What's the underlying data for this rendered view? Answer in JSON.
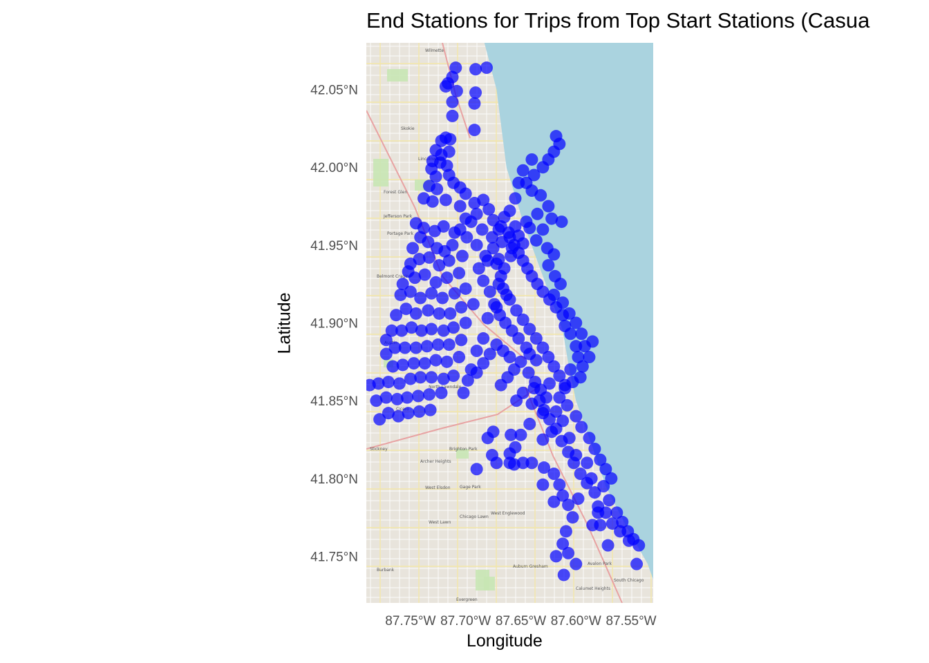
{
  "chart_data": {
    "type": "scatter",
    "title": "End Stations for Trips from Top Start Stations (Casua",
    "xlabel": "Longitude",
    "ylabel": "Latitude",
    "xlim": [
      -87.79,
      -87.53
    ],
    "ylim": [
      41.72,
      42.08
    ],
    "x_ticks": [
      {
        "value": -87.75,
        "label": "87.75°W"
      },
      {
        "value": -87.7,
        "label": "87.70°W"
      },
      {
        "value": -87.65,
        "label": "87.65°W"
      },
      {
        "value": -87.6,
        "label": "87.60°W"
      },
      {
        "value": -87.55,
        "label": "87.55°W"
      }
    ],
    "y_ticks": [
      {
        "value": 42.05,
        "label": "42.05°N"
      },
      {
        "value": 42.0,
        "label": "42.00°N"
      },
      {
        "value": 41.95,
        "label": "41.95°N"
      },
      {
        "value": 41.9,
        "label": "41.90°N"
      },
      {
        "value": 41.85,
        "label": "41.85°N"
      },
      {
        "value": 41.8,
        "label": "41.80°N"
      },
      {
        "value": 41.75,
        "label": "41.75°N"
      }
    ],
    "grid": false,
    "point_color": "#0000ff",
    "point_alpha": 0.7,
    "basemap": {
      "land": "#e8e4dc",
      "water": "#aad3df",
      "park": "#c8e6b4"
    },
    "map_labels": [
      "Wilmette",
      "Skokie",
      "Lincolnwood",
      "Jefferson Park",
      "Portage Park",
      "Belmont Cragin",
      "Austin",
      "Cicero",
      "North Lawndale",
      "Stickney",
      "Archer Heights",
      "Brighton Park",
      "Gage Park",
      "Chicago Lawn",
      "West Englewood",
      "Auburn Gresham",
      "Burbank",
      "Evergreen",
      "South Chicago",
      "Calumet Heights",
      "Avalon Park",
      "Forest Glen",
      "West Elsdon",
      "West Lawn"
    ],
    "points": [
      [
        -87.681,
        42.064
      ],
      [
        -87.691,
        42.063
      ],
      [
        -87.709,
        42.064
      ],
      [
        -87.712,
        42.058
      ],
      [
        -87.716,
        42.054
      ],
      [
        -87.708,
        42.049
      ],
      [
        -87.718,
        42.052
      ],
      [
        -87.691,
        42.048
      ],
      [
        -87.692,
        42.041
      ],
      [
        -87.712,
        42.042
      ],
      [
        -87.712,
        42.033
      ],
      [
        -87.692,
        42.024
      ],
      [
        -87.714,
        42.018
      ],
      [
        -87.718,
        42.019
      ],
      [
        -87.722,
        42.017
      ],
      [
        -87.715,
        42.01
      ],
      [
        -87.722,
        42.008
      ],
      [
        -87.727,
        42.011
      ],
      [
        -87.717,
        42.001
      ],
      [
        -87.723,
        42.003
      ],
      [
        -87.73,
        42.004
      ],
      [
        -87.715,
        41.995
      ],
      [
        -87.727,
        41.994
      ],
      [
        -87.731,
        41.999
      ],
      [
        -87.711,
        41.99
      ],
      [
        -87.705,
        41.987
      ],
      [
        -87.726,
        41.986
      ],
      [
        -87.733,
        41.988
      ],
      [
        -87.7,
        41.983
      ],
      [
        -87.718,
        41.979
      ],
      [
        -87.73,
        41.978
      ],
      [
        -87.738,
        41.98
      ],
      [
        -87.705,
        41.975
      ],
      [
        -87.692,
        41.977
      ],
      [
        -87.684,
        41.979
      ],
      [
        -87.679,
        41.973
      ],
      [
        -87.69,
        41.97
      ],
      [
        -87.695,
        41.965
      ],
      [
        -87.675,
        41.966
      ],
      [
        -87.668,
        41.962
      ],
      [
        -87.661,
        41.958
      ],
      [
        -87.652,
        41.956
      ],
      [
        -87.642,
        41.961
      ],
      [
        -87.636,
        41.953
      ],
      [
        -87.648,
        41.951
      ],
      [
        -87.658,
        41.948
      ],
      [
        -87.667,
        41.952
      ],
      [
        -87.659,
        41.943
      ],
      [
        -87.67,
        41.941
      ],
      [
        -87.682,
        41.943
      ],
      [
        -87.69,
        41.95
      ],
      [
        -87.699,
        41.955
      ],
      [
        -87.71,
        41.958
      ],
      [
        -87.72,
        41.962
      ],
      [
        -87.728,
        41.959
      ],
      [
        -87.738,
        41.961
      ],
      [
        -87.745,
        41.964
      ],
      [
        -87.712,
        41.95
      ],
      [
        -87.719,
        41.946
      ],
      [
        -87.726,
        41.948
      ],
      [
        -87.734,
        41.952
      ],
      [
        -87.741,
        41.955
      ],
      [
        -87.748,
        41.948
      ],
      [
        -87.703,
        41.943
      ],
      [
        -87.715,
        41.94
      ],
      [
        -87.724,
        41.937
      ],
      [
        -87.733,
        41.942
      ],
      [
        -87.742,
        41.941
      ],
      [
        -87.75,
        41.938
      ],
      [
        -87.706,
        41.932
      ],
      [
        -87.717,
        41.929
      ],
      [
        -87.727,
        41.926
      ],
      [
        -87.737,
        41.931
      ],
      [
        -87.746,
        41.929
      ],
      [
        -87.752,
        41.933
      ],
      [
        -87.757,
        41.925
      ],
      [
        -87.7,
        41.922
      ],
      [
        -87.71,
        41.919
      ],
      [
        -87.721,
        41.916
      ],
      [
        -87.731,
        41.919
      ],
      [
        -87.741,
        41.916
      ],
      [
        -87.75,
        41.92
      ],
      [
        -87.759,
        41.918
      ],
      [
        -87.693,
        41.912
      ],
      [
        -87.704,
        41.91
      ],
      [
        -87.714,
        41.906
      ],
      [
        -87.724,
        41.906
      ],
      [
        -87.734,
        41.908
      ],
      [
        -87.745,
        41.906
      ],
      [
        -87.754,
        41.909
      ],
      [
        -87.763,
        41.905
      ],
      [
        -87.7,
        41.9
      ],
      [
        -87.711,
        41.897
      ],
      [
        -87.72,
        41.895
      ],
      [
        -87.731,
        41.896
      ],
      [
        -87.74,
        41.895
      ],
      [
        -87.749,
        41.897
      ],
      [
        -87.758,
        41.895
      ],
      [
        -87.767,
        41.895
      ],
      [
        -87.772,
        41.889
      ],
      [
        -87.704,
        41.889
      ],
      [
        -87.715,
        41.886
      ],
      [
        -87.725,
        41.886
      ],
      [
        -87.735,
        41.885
      ],
      [
        -87.745,
        41.884
      ],
      [
        -87.755,
        41.884
      ],
      [
        -87.764,
        41.884
      ],
      [
        -87.772,
        41.88
      ],
      [
        -87.706,
        41.878
      ],
      [
        -87.717,
        41.875
      ],
      [
        -87.727,
        41.876
      ],
      [
        -87.737,
        41.874
      ],
      [
        -87.747,
        41.874
      ],
      [
        -87.757,
        41.873
      ],
      [
        -87.766,
        41.872
      ],
      [
        -87.711,
        41.866
      ],
      [
        -87.72,
        41.864
      ],
      [
        -87.731,
        41.865
      ],
      [
        -87.741,
        41.865
      ],
      [
        -87.75,
        41.864
      ],
      [
        -87.76,
        41.861
      ],
      [
        -87.77,
        41.862
      ],
      [
        -87.779,
        41.861
      ],
      [
        -87.787,
        41.86
      ],
      [
        -87.722,
        41.855
      ],
      [
        -87.733,
        41.854
      ],
      [
        -87.743,
        41.853
      ],
      [
        -87.753,
        41.852
      ],
      [
        -87.762,
        41.851
      ],
      [
        -87.772,
        41.852
      ],
      [
        -87.781,
        41.85
      ],
      [
        -87.732,
        41.844
      ],
      [
        -87.742,
        41.843
      ],
      [
        -87.752,
        41.842
      ],
      [
        -87.761,
        41.84
      ],
      [
        -87.77,
        41.842
      ],
      [
        -87.778,
        41.838
      ],
      [
        -87.7,
        41.967
      ],
      [
        -87.705,
        41.96
      ],
      [
        -87.685,
        41.96
      ],
      [
        -87.676,
        41.955
      ],
      [
        -87.665,
        41.935
      ],
      [
        -87.67,
        41.925
      ],
      [
        -87.663,
        41.918
      ],
      [
        -87.672,
        41.91
      ],
      [
        -87.68,
        41.903
      ],
      [
        -87.684,
        41.89
      ],
      [
        -87.69,
        41.882
      ],
      [
        -87.695,
        41.87
      ],
      [
        -87.698,
        41.863
      ],
      [
        -87.702,
        41.855
      ],
      [
        -87.622,
        41.967
      ],
      [
        -87.613,
        41.965
      ],
      [
        -87.63,
        41.96
      ],
      [
        -87.626,
        41.948
      ],
      [
        -87.62,
        41.944
      ],
      [
        -87.625,
        41.937
      ],
      [
        -87.619,
        41.93
      ],
      [
        -87.614,
        41.925
      ],
      [
        -87.62,
        41.918
      ],
      [
        -87.612,
        41.913
      ],
      [
        -87.606,
        41.906
      ],
      [
        -87.6,
        41.9
      ],
      [
        -87.595,
        41.893
      ],
      [
        -87.592,
        41.885
      ],
      [
        -87.598,
        41.878
      ],
      [
        -87.605,
        41.87
      ],
      [
        -87.61,
        41.86
      ],
      [
        -87.615,
        41.852
      ],
      [
        -87.608,
        41.847
      ],
      [
        -87.6,
        41.84
      ],
      [
        -87.595,
        41.833
      ],
      [
        -87.588,
        41.826
      ],
      [
        -87.583,
        41.819
      ],
      [
        -87.578,
        41.812
      ],
      [
        -87.573,
        41.806
      ],
      [
        -87.568,
        41.8
      ],
      [
        -87.575,
        41.795
      ],
      [
        -87.57,
        41.786
      ],
      [
        -87.563,
        41.778
      ],
      [
        -87.558,
        41.772
      ],
      [
        -87.553,
        41.766
      ],
      [
        -87.548,
        41.761
      ],
      [
        -87.543,
        41.757
      ],
      [
        -87.552,
        41.76
      ],
      [
        -87.56,
        41.766
      ],
      [
        -87.567,
        41.771
      ],
      [
        -87.573,
        41.778
      ],
      [
        -87.58,
        41.782
      ],
      [
        -87.583,
        41.791
      ],
      [
        -87.59,
        41.797
      ],
      [
        -87.596,
        41.803
      ],
      [
        -87.602,
        41.81
      ],
      [
        -87.607,
        41.817
      ],
      [
        -87.613,
        41.824
      ],
      [
        -87.618,
        41.832
      ],
      [
        -87.624,
        41.838
      ],
      [
        -87.629,
        41.844
      ],
      [
        -87.633,
        41.85
      ],
      [
        -87.638,
        41.858
      ],
      [
        -87.642,
        41.835
      ],
      [
        -87.65,
        41.828
      ],
      [
        -87.655,
        41.82
      ],
      [
        -87.66,
        41.816
      ],
      [
        -87.656,
        41.809
      ],
      [
        -87.648,
        41.81
      ],
      [
        -87.64,
        41.81
      ],
      [
        -87.629,
        41.807
      ],
      [
        -87.62,
        41.803
      ],
      [
        -87.615,
        41.796
      ],
      [
        -87.612,
        41.789
      ],
      [
        -87.607,
        41.783
      ],
      [
        -87.603,
        41.775
      ],
      [
        -87.609,
        41.766
      ],
      [
        -87.612,
        41.758
      ],
      [
        -87.618,
        41.75
      ],
      [
        -87.607,
        41.752
      ],
      [
        -87.6,
        41.745
      ],
      [
        -87.611,
        41.738
      ],
      [
        -87.571,
        41.757
      ],
      [
        -87.545,
        41.745
      ],
      [
        -87.58,
        41.778
      ],
      [
        -87.578,
        41.77
      ],
      [
        -87.585,
        41.77
      ],
      [
        -87.598,
        41.787
      ],
      [
        -87.586,
        41.8
      ],
      [
        -87.59,
        41.81
      ],
      [
        -87.6,
        41.815
      ],
      [
        -87.606,
        41.826
      ],
      [
        -87.612,
        41.837
      ],
      [
        -87.618,
        41.843
      ],
      [
        -87.624,
        41.861
      ],
      [
        -87.659,
        41.828
      ],
      [
        -87.675,
        41.83
      ],
      [
        -87.68,
        41.826
      ],
      [
        -87.676,
        41.815
      ],
      [
        -87.672,
        41.81
      ],
      [
        -87.66,
        41.81
      ],
      [
        -87.69,
        41.806
      ],
      [
        -87.63,
        41.796
      ],
      [
        -87.62,
        41.785
      ],
      [
        -87.596,
        41.865
      ],
      [
        -87.603,
        41.862
      ],
      [
        -87.61,
        41.858
      ],
      [
        -87.585,
        41.888
      ],
      [
        -87.588,
        41.878
      ],
      [
        -87.594,
        41.872
      ],
      [
        -87.6,
        41.885
      ],
      [
        -87.605,
        41.893
      ],
      [
        -87.61,
        41.898
      ],
      [
        -87.612,
        41.905
      ],
      [
        -87.618,
        41.91
      ],
      [
        -87.624,
        41.915
      ],
      [
        -87.63,
        41.92
      ],
      [
        -87.635,
        41.925
      ],
      [
        -87.64,
        41.93
      ],
      [
        -87.644,
        41.935
      ],
      [
        -87.648,
        41.94
      ],
      [
        -87.652,
        41.945
      ],
      [
        -87.656,
        41.95
      ],
      [
        -87.66,
        41.955
      ],
      [
        -87.655,
        41.962
      ],
      [
        -87.645,
        41.965
      ],
      [
        -87.635,
        41.97
      ],
      [
        -87.625,
        41.975
      ],
      [
        -87.632,
        41.982
      ],
      [
        -87.64,
        41.985
      ],
      [
        -87.645,
        41.99
      ],
      [
        -87.638,
        41.995
      ],
      [
        -87.63,
        42.0
      ],
      [
        -87.625,
        42.005
      ],
      [
        -87.62,
        42.01
      ],
      [
        -87.615,
        42.015
      ],
      [
        -87.618,
        42.02
      ],
      [
        -87.64,
        42.005
      ],
      [
        -87.648,
        41.998
      ],
      [
        -87.652,
        41.99
      ],
      [
        -87.655,
        41.98
      ],
      [
        -87.66,
        41.972
      ],
      [
        -87.665,
        41.968
      ],
      [
        -87.67,
        41.96
      ],
      [
        -87.675,
        41.948
      ],
      [
        -87.672,
        41.938
      ],
      [
        -87.668,
        41.93
      ],
      [
        -87.666,
        41.922
      ],
      [
        -87.66,
        41.915
      ],
      [
        -87.654,
        41.908
      ],
      [
        -87.648,
        41.902
      ],
      [
        -87.642,
        41.896
      ],
      [
        -87.636,
        41.89
      ],
      [
        -87.63,
        41.884
      ],
      [
        -87.625,
        41.878
      ],
      [
        -87.62,
        41.872
      ],
      [
        -87.615,
        41.866
      ],
      [
        -87.645,
        41.884
      ],
      [
        -87.652,
        41.89
      ],
      [
        -87.658,
        41.895
      ],
      [
        -87.664,
        41.9
      ],
      [
        -87.669,
        41.905
      ],
      [
        -87.674,
        41.912
      ],
      [
        -87.678,
        41.92
      ],
      [
        -87.684,
        41.927
      ],
      [
        -87.688,
        41.935
      ],
      [
        -87.68,
        41.94
      ],
      [
        -87.65,
        41.875
      ],
      [
        -87.656,
        41.87
      ],
      [
        -87.662,
        41.865
      ],
      [
        -87.668,
        41.86
      ],
      [
        -87.66,
        41.878
      ],
      [
        -87.666,
        41.882
      ],
      [
        -87.672,
        41.886
      ],
      [
        -87.678,
        41.88
      ],
      [
        -87.684,
        41.874
      ],
      [
        -87.69,
        41.868
      ],
      [
        -87.643,
        41.868
      ],
      [
        -87.637,
        41.862
      ],
      [
        -87.632,
        41.857
      ],
      [
        -87.627,
        41.852
      ],
      [
        -87.636,
        41.876
      ],
      [
        -87.642,
        41.88
      ],
      [
        -87.648,
        41.855
      ],
      [
        -87.654,
        41.85
      ],
      [
        -87.64,
        41.848
      ],
      [
        -87.63,
        41.842
      ],
      [
        -87.622,
        41.83
      ],
      [
        -87.63,
        41.825
      ]
    ]
  }
}
